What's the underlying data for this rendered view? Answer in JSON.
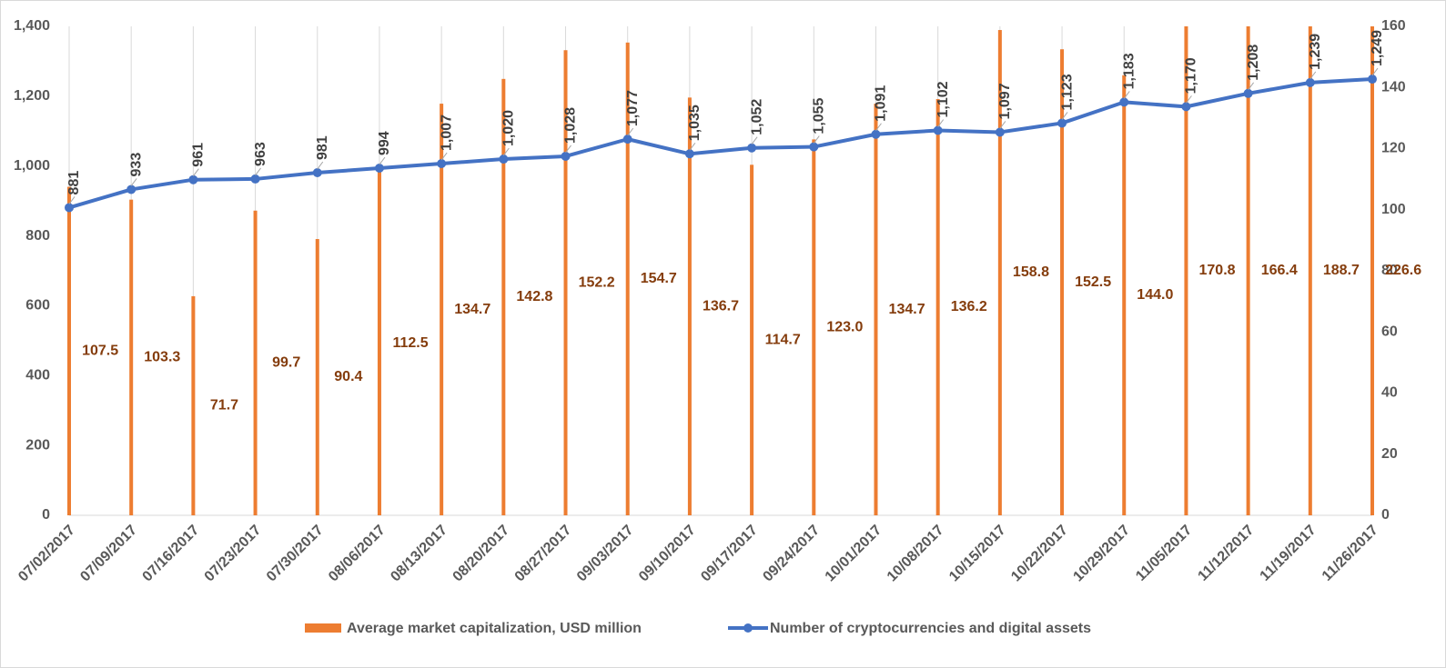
{
  "chart_data": {
    "type": "bar-line",
    "categories": [
      "07/02/2017",
      "07/09/2017",
      "07/16/2017",
      "07/23/2017",
      "07/30/2017",
      "08/06/2017",
      "08/13/2017",
      "08/20/2017",
      "08/27/2017",
      "09/03/2017",
      "09/10/2017",
      "09/17/2017",
      "09/24/2017",
      "10/01/2017",
      "10/08/2017",
      "10/15/2017",
      "10/22/2017",
      "10/29/2017",
      "11/05/2017",
      "11/12/2017",
      "11/19/2017",
      "11/26/2017"
    ],
    "series": [
      {
        "name": "Average market capitalization, USD million",
        "type": "bar",
        "axis": "y2",
        "color": "#ed7d31",
        "values": [
          107.5,
          103.3,
          71.7,
          99.7,
          90.4,
          112.5,
          134.7,
          142.8,
          152.2,
          154.7,
          136.7,
          114.7,
          123.0,
          134.7,
          136.2,
          158.8,
          152.5,
          144.0,
          170.8,
          166.4,
          188.7,
          226.6
        ],
        "value_labels": [
          "107.5",
          "103.3",
          "71.7",
          "99.7",
          "90.4",
          "112.5",
          "134.7",
          "142.8",
          "152.2",
          "154.7",
          "136.7",
          "114.7",
          "123.0",
          "134.7",
          "136.2",
          "158.8",
          "152.5",
          "144.0",
          "170.8",
          "166.4",
          "188.7",
          "226.6"
        ]
      },
      {
        "name": "Number of cryptocurrencies and digital assets",
        "type": "line",
        "axis": "y",
        "color": "#4472c4",
        "values": [
          881,
          933,
          961,
          963,
          981,
          994,
          1007,
          1020,
          1028,
          1077,
          1035,
          1052,
          1055,
          1091,
          1102,
          1097,
          1123,
          1183,
          1170,
          1208,
          1239,
          1249
        ],
        "value_labels": [
          "881",
          "933",
          "961",
          "963",
          "981",
          "994",
          "1,007",
          "1,020",
          "1,028",
          "1,077",
          "1,035",
          "1,052",
          "1,055",
          "1,091",
          "1,102",
          "1,097",
          "1,123",
          "1,183",
          "1,170",
          "1,208",
          "1,239",
          "1,249"
        ]
      }
    ],
    "ylim": [
      0,
      1400
    ],
    "yticks": [
      0,
      200,
      400,
      600,
      800,
      {
        "value": 1000,
        "label": "1,000"
      },
      {
        "value": 1200,
        "label": "1,200"
      },
      {
        "value": 1400,
        "label": "1,400"
      }
    ],
    "y2lim": [
      0,
      160
    ],
    "y2ticks": [
      0,
      20,
      40,
      60,
      80,
      100,
      120,
      140,
      160
    ],
    "legend": "bottom"
  }
}
